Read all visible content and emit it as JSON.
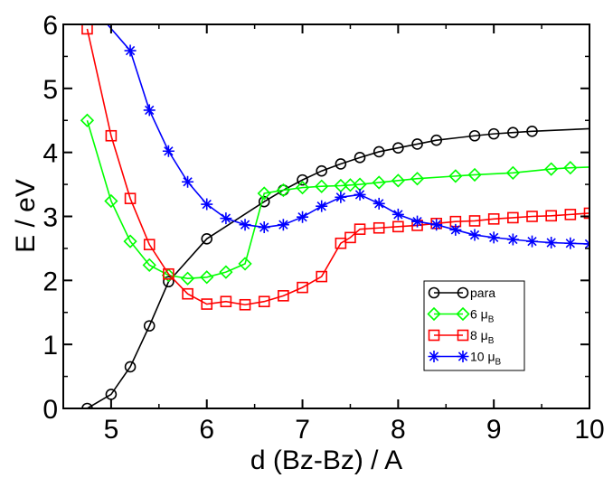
{
  "chart_data": {
    "type": "line",
    "title": "",
    "xlabel": "d (Bz-Bz) / A",
    "ylabel": "E / eV",
    "xlim": [
      4.5,
      10
    ],
    "ylim": [
      0,
      6
    ],
    "xticks": [
      5,
      6,
      7,
      8,
      9,
      10
    ],
    "yticks": [
      0,
      1,
      2,
      3,
      4,
      5,
      6
    ],
    "xtick_labels": [
      "5",
      "6",
      "7",
      "8",
      "9",
      "10"
    ],
    "ytick_labels": [
      "0",
      "1",
      "2",
      "3",
      "4",
      "5",
      "6"
    ],
    "grid": false,
    "legend_position": "lower-right",
    "series": [
      {
        "name": "para",
        "legend_main": "para",
        "legend_sub": "",
        "color": "#000000",
        "marker": "circle",
        "x": [
          4.75,
          5.0,
          5.2,
          5.4,
          5.6,
          6.0,
          6.6,
          6.8,
          7.0,
          7.2,
          7.4,
          7.6,
          7.8,
          8.0,
          8.2,
          8.4,
          8.8,
          9.0,
          9.2,
          9.4,
          10.0
        ],
        "y": [
          0.0,
          0.22,
          0.65,
          1.29,
          1.98,
          2.65,
          3.23,
          3.41,
          3.57,
          3.71,
          3.82,
          3.92,
          4.01,
          4.07,
          4.13,
          4.19,
          4.26,
          4.29,
          4.31,
          4.33,
          4.37
        ],
        "markers_hidden_at": [
          10.0
        ]
      },
      {
        "name": "6 μB",
        "legend_main": "6 μ",
        "legend_sub": "B",
        "color": "#00ff00",
        "marker": "diamond",
        "x": [
          4.75,
          5.0,
          5.2,
          5.4,
          5.6,
          5.8,
          6.0,
          6.2,
          6.4,
          6.6,
          6.8,
          7.0,
          7.2,
          7.4,
          7.5,
          7.6,
          7.8,
          8.0,
          8.2,
          8.6,
          8.8,
          9.2,
          9.6,
          9.8,
          10.0
        ],
        "y": [
          4.5,
          3.24,
          2.61,
          2.24,
          2.08,
          2.03,
          2.05,
          2.13,
          2.26,
          3.36,
          3.41,
          3.45,
          3.47,
          3.48,
          3.49,
          3.5,
          3.53,
          3.56,
          3.59,
          3.63,
          3.65,
          3.68,
          3.74,
          3.76,
          3.77
        ],
        "markers_hidden_at": [
          10.0
        ]
      },
      {
        "name": "8 μB",
        "legend_main": "8 μ",
        "legend_sub": "B",
        "color": "#ff0000",
        "marker": "square",
        "x": [
          4.75,
          5.0,
          5.2,
          5.4,
          5.6,
          5.8,
          6.0,
          6.2,
          6.4,
          6.6,
          6.8,
          7.0,
          7.2,
          7.4,
          7.5,
          7.6,
          7.8,
          8.0,
          8.2,
          8.4,
          8.6,
          8.8,
          9.0,
          9.2,
          9.4,
          9.6,
          9.8,
          10.0
        ],
        "y": [
          5.93,
          4.26,
          3.28,
          2.56,
          2.1,
          1.79,
          1.63,
          1.67,
          1.62,
          1.67,
          1.76,
          1.89,
          2.06,
          2.58,
          2.67,
          2.8,
          2.82,
          2.84,
          2.86,
          2.89,
          2.92,
          2.93,
          2.96,
          2.98,
          3.0,
          3.01,
          3.03,
          3.05
        ],
        "markers_hidden_at": []
      },
      {
        "name": "10 μB",
        "legend_main": "10 μ",
        "legend_sub": "B",
        "color": "#0000ff",
        "marker": "star",
        "x": [
          4.95,
          5.2,
          5.4,
          5.6,
          5.8,
          6.0,
          6.2,
          6.4,
          6.6,
          6.8,
          7.0,
          7.2,
          7.4,
          7.6,
          7.8,
          8.0,
          8.2,
          8.4,
          8.6,
          8.8,
          9.0,
          9.2,
          9.4,
          9.6,
          9.8,
          10.0
        ],
        "y": [
          6.02,
          5.59,
          4.66,
          4.02,
          3.54,
          3.19,
          2.97,
          2.87,
          2.83,
          2.87,
          2.99,
          3.16,
          3.3,
          3.34,
          3.2,
          3.03,
          2.92,
          2.87,
          2.79,
          2.71,
          2.67,
          2.64,
          2.61,
          2.59,
          2.58,
          2.57
        ],
        "markers_hidden_at": [
          4.95
        ]
      }
    ]
  }
}
